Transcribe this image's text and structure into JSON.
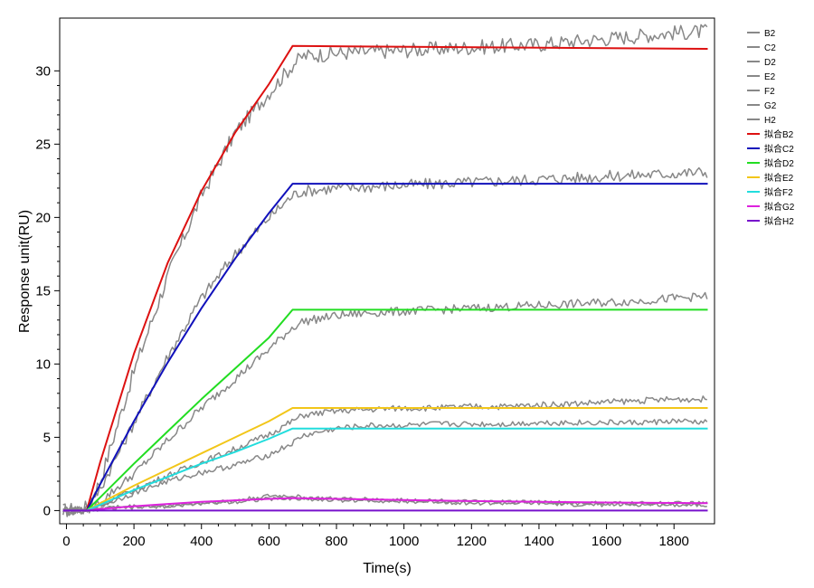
{
  "chart_data": {
    "type": "line",
    "title": "",
    "xlabel": "Time(s)",
    "ylabel": "Response unit(RU)",
    "xlim": [
      -20,
      1920
    ],
    "ylim": [
      -0.9,
      33.6
    ],
    "xticks": [
      0,
      200,
      400,
      600,
      800,
      1000,
      1200,
      1400,
      1600,
      1800
    ],
    "yticks": [
      0,
      5,
      10,
      15,
      20,
      25,
      30
    ],
    "grid": false,
    "legend_position": "top-right, outside plot",
    "series": [
      {
        "name": "B2",
        "kind": "measured",
        "color": "#888888",
        "x": [
          -10,
          60,
          100,
          200,
          300,
          400,
          500,
          600,
          670,
          700,
          800,
          900,
          1000,
          1100,
          1200,
          1300,
          1400,
          1500,
          1600,
          1700,
          1800,
          1900
        ],
        "y": [
          0,
          0.2,
          2,
          9.5,
          16,
          21.5,
          25.8,
          28.5,
          30.4,
          31,
          31.2,
          31.3,
          31.4,
          31.5,
          31.6,
          31.7,
          31.8,
          32,
          32.2,
          32.4,
          32.6,
          32.7
        ]
      },
      {
        "name": "C2",
        "kind": "measured",
        "color": "#888888",
        "x": [
          -10,
          60,
          100,
          200,
          300,
          400,
          500,
          600,
          670,
          700,
          800,
          900,
          1000,
          1100,
          1200,
          1300,
          1400,
          1500,
          1600,
          1700,
          1800,
          1900
        ],
        "y": [
          0,
          0.1,
          1.5,
          6,
          10.5,
          14.5,
          17.5,
          20,
          21.5,
          21.8,
          22,
          22.1,
          22.2,
          22.3,
          22.4,
          22.5,
          22.6,
          22.7,
          22.8,
          22.9,
          23,
          23.1
        ]
      },
      {
        "name": "D2",
        "kind": "measured",
        "color": "#888888",
        "x": [
          -10,
          60,
          100,
          200,
          300,
          400,
          500,
          600,
          670,
          700,
          800,
          900,
          1000,
          1100,
          1200,
          1300,
          1400,
          1500,
          1600,
          1700,
          1800,
          1900
        ],
        "y": [
          0,
          0,
          0.6,
          2.5,
          4.8,
          7,
          9,
          11,
          12.5,
          12.9,
          13.3,
          13.5,
          13.6,
          13.7,
          13.8,
          13.9,
          14,
          14.1,
          14.2,
          14.3,
          14.5,
          14.6
        ]
      },
      {
        "name": "E2",
        "kind": "measured",
        "color": "#888888",
        "x": [
          -10,
          60,
          100,
          200,
          300,
          400,
          500,
          600,
          670,
          700,
          800,
          900,
          1000,
          1100,
          1200,
          1300,
          1400,
          1500,
          1600,
          1700,
          1800,
          1900
        ],
        "y": [
          0,
          0,
          0.4,
          1.4,
          2.4,
          3.3,
          4.2,
          5.2,
          6.1,
          6.5,
          6.8,
          6.9,
          7,
          7,
          7.1,
          7.1,
          7.2,
          7.3,
          7.4,
          7.5,
          7.6,
          7.6
        ]
      },
      {
        "name": "F2",
        "kind": "measured",
        "color": "#888888",
        "x": [
          -10,
          60,
          100,
          200,
          300,
          400,
          500,
          600,
          670,
          700,
          800,
          900,
          1000,
          1100,
          1200,
          1300,
          1400,
          1500,
          1600,
          1700,
          1800,
          1900
        ],
        "y": [
          0,
          0,
          0.3,
          1.2,
          2,
          2.6,
          3.1,
          3.8,
          4.6,
          5.1,
          5.6,
          5.8,
          5.8,
          5.9,
          5.9,
          5.9,
          6,
          6,
          6,
          6,
          6.1,
          6
        ]
      },
      {
        "name": "G2",
        "kind": "measured",
        "color": "#888888",
        "x": [
          -10,
          60,
          100,
          200,
          300,
          400,
          500,
          600,
          670,
          700,
          800,
          900,
          1000,
          1100,
          1200,
          1300,
          1400,
          1500,
          1600,
          1700,
          1800,
          1900
        ],
        "y": [
          0,
          0,
          0.2,
          0.3,
          0.3,
          0.5,
          0.7,
          1,
          1,
          0.9,
          0.8,
          0.8,
          0.7,
          0.7,
          0.6,
          0.6,
          0.6,
          0.5,
          0.5,
          0.5,
          0.5,
          0.5
        ]
      },
      {
        "name": "H2",
        "kind": "measured",
        "color": "#888888",
        "x": [
          -10,
          60,
          100,
          200,
          300,
          400,
          500,
          600,
          670,
          700,
          800,
          900,
          1000,
          1100,
          1200,
          1300,
          1400,
          1500,
          1600,
          1700,
          1800,
          1900
        ],
        "y": [
          0,
          0,
          0.1,
          0.2,
          0.3,
          0.5,
          0.6,
          0.8,
          0.8,
          0.8,
          0.7,
          0.7,
          0.6,
          0.6,
          0.5,
          0.5,
          0.5,
          0.4,
          0.4,
          0.4,
          0.4,
          0.4
        ]
      },
      {
        "name": "拟合B2",
        "kind": "fit",
        "color": "#dd1111",
        "x": [
          -10,
          60,
          100,
          200,
          300,
          400,
          500,
          600,
          670,
          1900
        ],
        "y": [
          0,
          0,
          3.3,
          10.7,
          16.9,
          21.8,
          25.8,
          29.1,
          31.7,
          31.5
        ]
      },
      {
        "name": "拟合C2",
        "kind": "fit",
        "color": "#1111bb",
        "x": [
          -10,
          60,
          100,
          200,
          300,
          400,
          500,
          600,
          670,
          1900
        ],
        "y": [
          0,
          0,
          1.8,
          6.1,
          10.1,
          13.8,
          17.2,
          20.3,
          22.3,
          22.3
        ]
      },
      {
        "name": "拟合D2",
        "kind": "fit",
        "color": "#22dd22",
        "x": [
          -10,
          60,
          100,
          200,
          300,
          400,
          500,
          600,
          670,
          1900
        ],
        "y": [
          0,
          0,
          0.9,
          3.2,
          5.4,
          7.6,
          9.7,
          11.8,
          13.7,
          13.7
        ]
      },
      {
        "name": "拟合E2",
        "kind": "fit",
        "color": "#f2c619",
        "x": [
          -10,
          60,
          100,
          200,
          300,
          400,
          500,
          600,
          670,
          1900
        ],
        "y": [
          0,
          0,
          0.5,
          1.7,
          2.8,
          3.9,
          5,
          6.1,
          7,
          7
        ]
      },
      {
        "name": "拟合F2",
        "kind": "fit",
        "color": "#22dddd",
        "x": [
          -10,
          60,
          100,
          200,
          300,
          400,
          500,
          600,
          670,
          1900
        ],
        "y": [
          0,
          0,
          0.4,
          1.4,
          2.3,
          3.2,
          4,
          4.9,
          5.6,
          5.6
        ]
      },
      {
        "name": "拟合G2",
        "kind": "fit",
        "color": "#dd22dd",
        "x": [
          -10,
          60,
          100,
          200,
          300,
          400,
          500,
          600,
          670,
          800,
          1000,
          1200,
          1400,
          1600,
          1800,
          1900
        ],
        "y": [
          0,
          0,
          0.1,
          0.3,
          0.45,
          0.6,
          0.7,
          0.8,
          0.85,
          0.8,
          0.72,
          0.65,
          0.6,
          0.55,
          0.52,
          0.5
        ]
      },
      {
        "name": "拟合H2",
        "kind": "fit",
        "color": "#7711cc",
        "x": [
          -10,
          1900
        ],
        "y": [
          0,
          0
        ]
      }
    ]
  }
}
